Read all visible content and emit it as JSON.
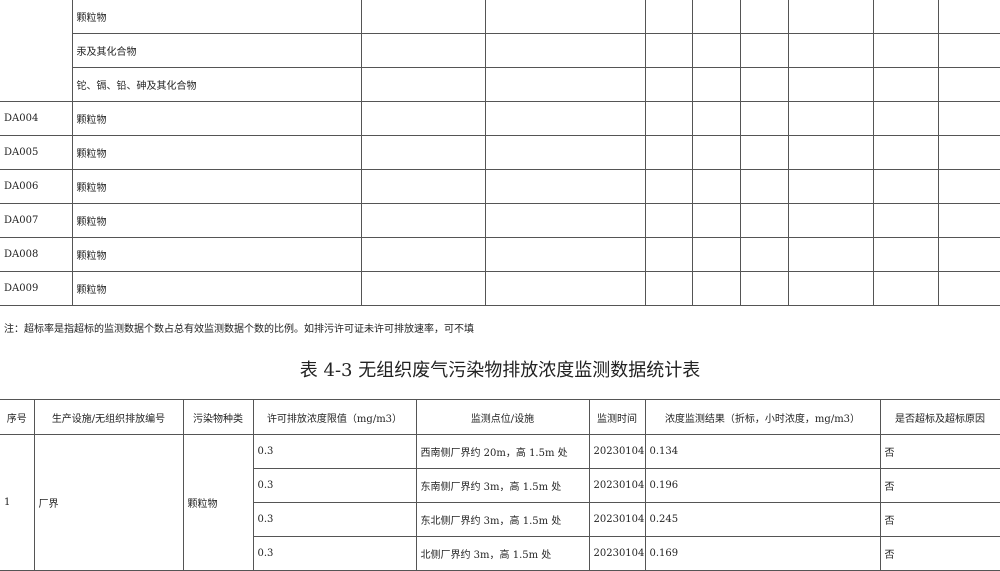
{
  "table1": {
    "rows": [
      {
        "id": "",
        "pollutant": "颗粒物"
      },
      {
        "id": "",
        "pollutant": "汞及其化合物"
      },
      {
        "id": "",
        "pollutant": "铊、镉、铅、砷及其化合物"
      },
      {
        "id": "DA004",
        "pollutant": "颗粒物"
      },
      {
        "id": "DA005",
        "pollutant": "颗粒物"
      },
      {
        "id": "DA006",
        "pollutant": "颗粒物"
      },
      {
        "id": "DA007",
        "pollutant": "颗粒物"
      },
      {
        "id": "DA008",
        "pollutant": "颗粒物"
      },
      {
        "id": "DA009",
        "pollutant": "颗粒物"
      }
    ]
  },
  "note": "注：超标率是指超标的监测数据个数占总有效监测数据个数的比例。如排污许可证未许可排放速率，可不填",
  "title": "表 4-3 无组织废气污染物排放浓度监测数据统计表",
  "table2": {
    "headers": [
      "序号",
      "生产设施/无组织排放编号",
      "污染物种类",
      "许可排放浓度限值（mg/m3）",
      "监测点位/设施",
      "监测时间",
      "浓度监测结果（折标，小时浓度，mg/m3）",
      "是否超标及超标原因"
    ],
    "group": {
      "no": "1",
      "facility": "厂界",
      "pollutant": "颗粒物"
    },
    "rows": [
      {
        "limit": "0.3",
        "point": "西南侧厂界约 20m，高 1.5m 处",
        "time": "20230104",
        "result": "0.134",
        "exceed": "否"
      },
      {
        "limit": "0.3",
        "point": "东南侧厂界约 3m，高 1.5m 处",
        "time": "20230104",
        "result": "0.196",
        "exceed": "否"
      },
      {
        "limit": "0.3",
        "point": "东北侧厂界约 3m，高 1.5m 处",
        "time": "20230104",
        "result": "0.245",
        "exceed": "否"
      },
      {
        "limit": "0.3",
        "point": "北侧厂界约 3m，高 1.5m 处",
        "time": "20230104",
        "result": "0.169",
        "exceed": "否"
      }
    ]
  }
}
